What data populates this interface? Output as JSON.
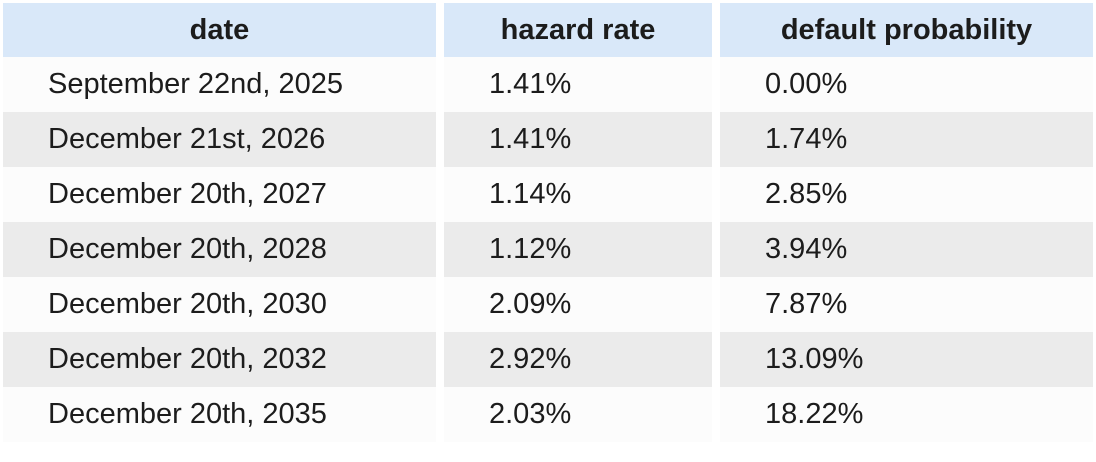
{
  "table": {
    "columns": [
      {
        "key": "date",
        "label": "date"
      },
      {
        "key": "hazard_rate",
        "label": "hazard rate"
      },
      {
        "key": "default_probability",
        "label": "default probability"
      }
    ],
    "rows": [
      {
        "date": "September 22nd, 2025",
        "hazard_rate": "1.41%",
        "default_probability": "0.00%"
      },
      {
        "date": "December 21st, 2026",
        "hazard_rate": "1.41%",
        "default_probability": "1.74%"
      },
      {
        "date": "December 20th, 2027",
        "hazard_rate": "1.14%",
        "default_probability": "2.85%"
      },
      {
        "date": "December 20th, 2028",
        "hazard_rate": "1.12%",
        "default_probability": "3.94%"
      },
      {
        "date": "December 20th, 2030",
        "hazard_rate": "2.09%",
        "default_probability": "7.87%"
      },
      {
        "date": "December 20th, 2032",
        "hazard_rate": "2.92%",
        "default_probability": "13.09%"
      },
      {
        "date": "December 20th, 2035",
        "hazard_rate": "2.03%",
        "default_probability": "18.22%"
      }
    ]
  },
  "colors": {
    "header_bg": "#d9e8f9",
    "stripe_bg": "#ebebeb",
    "row_bg": "#fcfcfc",
    "text": "#1c1c1c"
  },
  "chart_data": {
    "type": "table",
    "title": "",
    "columns": [
      "date",
      "hazard rate",
      "default probability"
    ],
    "rows": [
      [
        "September 22nd, 2025",
        "1.41%",
        "0.00%"
      ],
      [
        "December 21st, 2026",
        "1.41%",
        "1.74%"
      ],
      [
        "December 20th, 2027",
        "1.14%",
        "2.85%"
      ],
      [
        "December 20th, 2028",
        "1.12%",
        "3.94%"
      ],
      [
        "December 20th, 2030",
        "2.09%",
        "7.87%"
      ],
      [
        "December 20th, 2032",
        "2.92%",
        "13.09%"
      ],
      [
        "December 20th, 2035",
        "2.03%",
        "18.22%"
      ]
    ],
    "hazard_rate_pct": [
      1.41,
      1.41,
      1.14,
      1.12,
      2.09,
      2.92,
      2.03
    ],
    "default_probability_pct": [
      0.0,
      1.74,
      2.85,
      3.94,
      7.87,
      13.09,
      18.22
    ]
  }
}
